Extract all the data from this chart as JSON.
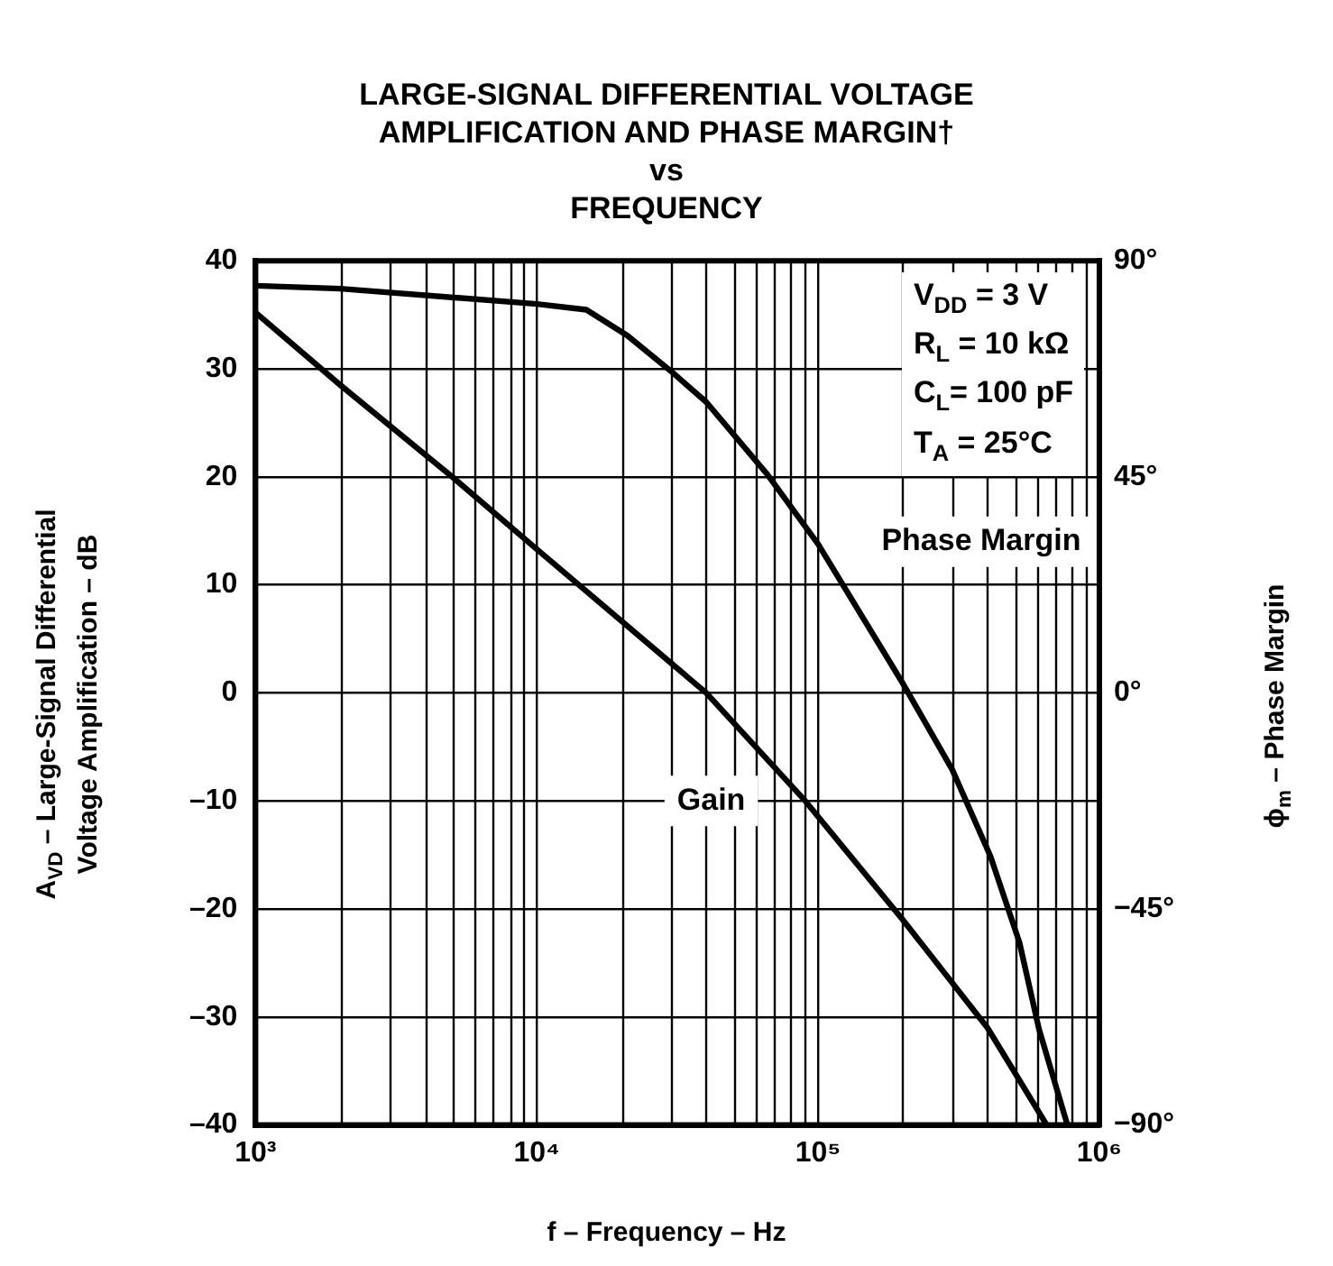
{
  "chart_data": {
    "type": "line",
    "title": "LARGE-SIGNAL DIFFERENTIAL VOLTAGE\nAMPLIFICATION AND PHASE MARGIN†\nvs\nFREQUENCY",
    "xlabel": "f – Frequency – Hz",
    "ylabel": "A$_{VD}$ – Large-Signal Differential\nVoltage Amplification – dB",
    "y2label": "ϕ$_{m}$ – Phase Margin",
    "annotations": [
      "V$_{DD}$ = 3 V",
      "R$_{L}$ = 10 kΩ",
      "C$_{L}$= 100 pF",
      "T$_{A}$ = 25°C"
    ],
    "log": "x",
    "grid": true,
    "legend": false,
    "marker": "none",
    "line_style": "solid",
    "xlim": [
      1000,
      1000000
    ],
    "xticks": [
      {
        "value": 1000,
        "label": "10³"
      },
      {
        "value": 10000,
        "label": "10⁴"
      },
      {
        "value": 100000,
        "label": "10⁵"
      },
      {
        "value": 1000000,
        "label": "10⁶"
      }
    ],
    "ylim": [
      -40,
      40
    ],
    "yticks": [
      {
        "value": -40,
        "label": "–40"
      },
      {
        "value": -30,
        "label": "–30"
      },
      {
        "value": -20,
        "label": "–20"
      },
      {
        "value": -10,
        "label": "–10"
      },
      0,
      10,
      20,
      30,
      40
    ],
    "y2lim": [
      -90,
      90
    ],
    "y2ticks": [
      {
        "value": -90,
        "label": "−90°"
      },
      {
        "value": -45,
        "label": "−45°"
      },
      {
        "value": 0,
        "label": "0°"
      },
      {
        "value": 45,
        "label": "45°"
      },
      {
        "value": 90,
        "label": "90°"
      }
    ],
    "series": [
      {
        "name": "Gain",
        "color": "#000000",
        "x": [
          1000,
          2000,
          5000,
          10000,
          40000,
          90000,
          200000,
          400000,
          650000
        ],
        "values": [
          35.2,
          28.5,
          20,
          13.3,
          0,
          -10,
          -21,
          -31,
          -40
        ]
      },
      {
        "name": "Phase Margin",
        "color": "#000000",
        "axis": "y2",
        "x": [
          1000,
          2000,
          10000,
          15000,
          21000,
          30000,
          40000,
          66000,
          100000,
          200000,
          300000,
          410000,
          520000,
          610000,
          770000
        ],
        "values": [
          84.8,
          84.2,
          81,
          79.8,
          74.4,
          67,
          60.6,
          45.5,
          31,
          2,
          -16,
          -34,
          -52,
          -70,
          -90
        ]
      }
    ]
  }
}
